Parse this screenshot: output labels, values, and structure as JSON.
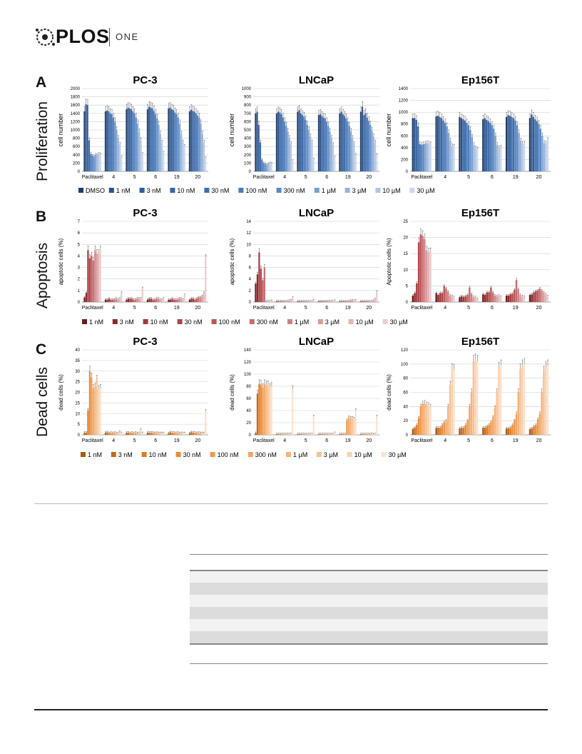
{
  "header": {
    "brand": "PLOS",
    "journal": "ONE"
  },
  "colors": {
    "proliferation": [
      "#1f3c67",
      "#2a528a",
      "#305d9b",
      "#3566a7",
      "#3c6fb2",
      "#4b7cbd",
      "#5b89c5",
      "#7b9fd0",
      "#97b3da",
      "#b2c6e3",
      "#cbd8ec"
    ],
    "apoptosis": [
      "#6e1a1e",
      "#8c2a2d",
      "#a2393b",
      "#b04648",
      "#bd5658",
      "#c66c6e",
      "#cf8285",
      "#d99a9c",
      "#e3b3b5",
      "#eccbcd"
    ],
    "dead": [
      "#a85a14",
      "#c36a1f",
      "#dc7b25",
      "#ea8b37",
      "#f0984a",
      "#f3a766",
      "#f5b37a",
      "#f7c294",
      "#f9d2b0",
      "#fbe2cd"
    ]
  },
  "rows": [
    {
      "letter": "A",
      "label": "Proliferation",
      "legend": [
        "DMSO",
        "1 nM",
        "3 nM",
        "10 nM",
        "30 nM",
        "100 nM",
        "300 nM",
        "1 µM",
        "3 µM",
        "10 µM",
        "30 µM"
      ],
      "palette": "proliferation",
      "charts": [
        {
          "title": "PC-3",
          "ylabel": "cell number",
          "ymax": 2000,
          "step": 200,
          "categories": [
            "Paclitaxel",
            "4",
            "5",
            "6",
            "19",
            "20"
          ],
          "values": [
            [
              1450,
              1620,
              1600,
              750,
              420,
              380,
              360,
              400,
              390,
              420,
              410
            ],
            [
              1450,
              1470,
              1450,
              1400,
              1380,
              1300,
              1200,
              1000,
              800,
              650,
              350
            ],
            [
              1500,
              1540,
              1520,
              1500,
              1450,
              1400,
              1300,
              1150,
              950,
              750,
              420
            ],
            [
              1500,
              1560,
              1540,
              1520,
              1460,
              1380,
              1280,
              1120,
              900,
              700,
              450
            ],
            [
              1520,
              1540,
              1500,
              1480,
              1420,
              1380,
              1300,
              1150,
              900,
              700,
              600
            ],
            [
              1450,
              1490,
              1460,
              1440,
              1400,
              1350,
              1300,
              1150,
              900,
              700,
              330
            ]
          ]
        },
        {
          "title": "LNCaP",
          "ylabel": "cell number",
          "ymax": 1000,
          "step": 100,
          "categories": [
            "Paclitaxel",
            "4",
            "5",
            "6",
            "19",
            "20"
          ],
          "values": [
            [
              700,
              720,
              560,
              350,
              140,
              100,
              90,
              80,
              90,
              100,
              95
            ],
            [
              700,
              720,
              710,
              690,
              650,
              600,
              550,
              480,
              400,
              330,
              130
            ],
            [
              720,
              740,
              700,
              680,
              660,
              620,
              560,
              500,
              420,
              350,
              150
            ],
            [
              680,
              690,
              670,
              650,
              640,
              600,
              550,
              480,
              400,
              320,
              170
            ],
            [
              700,
              720,
              690,
              670,
              640,
              600,
              550,
              480,
              400,
              330,
              200
            ],
            [
              720,
              780,
              680,
              700,
              650,
              610,
              560,
              490,
              420,
              350,
              200
            ]
          ]
        },
        {
          "title": "Ep156T",
          "ylabel": "cell number",
          "ymax": 1400,
          "step": 200,
          "categories": [
            "Paclitaxel",
            "4",
            "5",
            "6",
            "19",
            "20"
          ],
          "values": [
            [
              900,
              900,
              870,
              760,
              460,
              450,
              460,
              470,
              480,
              470,
              460
            ],
            [
              930,
              940,
              920,
              900,
              860,
              820,
              760,
              650,
              520,
              430,
              420
            ],
            [
              920,
              900,
              880,
              860,
              820,
              780,
              700,
              580,
              450,
              400,
              380
            ],
            [
              880,
              900,
              870,
              850,
              820,
              780,
              720,
              600,
              450,
              400,
              410
            ],
            [
              920,
              950,
              940,
              920,
              900,
              860,
              780,
              650,
              520,
              470,
              470
            ],
            [
              900,
              960,
              920,
              880,
              850,
              800,
              720,
              600,
              480,
              470,
              530
            ]
          ]
        }
      ]
    },
    {
      "letter": "B",
      "label": "Apoptosis",
      "legend": [
        "1 nM",
        "3 nM",
        "10 nM",
        "30 nM",
        "100 nM",
        "300 nM",
        "1 µM",
        "3 µM",
        "10 µM",
        "30 µM"
      ],
      "palette": "apoptosis",
      "charts": [
        {
          "title": "PC-3",
          "ylabel": "apoptotic cells (%)",
          "ymax": 7,
          "step": 1,
          "categories": [
            "Paclitaxel",
            "4",
            "5",
            "6",
            "19",
            "20"
          ],
          "values": [
            [
              0.4,
              0.8,
              4.5,
              3.8,
              4,
              3.6,
              4.5,
              4.2,
              4.2,
              4.5
            ],
            [
              0.2,
              0.2,
              0.3,
              0.2,
              0.2,
              0.2,
              0.3,
              0.2,
              0.3,
              0.8
            ],
            [
              0.2,
              0.3,
              0.3,
              0.3,
              0.2,
              0.2,
              0.3,
              0.3,
              0.3,
              1.2
            ],
            [
              0.2,
              0.3,
              0.3,
              0.2,
              0.2,
              0.3,
              0.3,
              0.2,
              0.2,
              0.3
            ],
            [
              0.2,
              0.2,
              0.3,
              0.2,
              0.2,
              0.2,
              0.3,
              0.3,
              0.2,
              0.6
            ],
            [
              0.2,
              0.3,
              0.3,
              0.2,
              0.3,
              0.4,
              0.4,
              0.5,
              0.8,
              3.8
            ]
          ]
        },
        {
          "title": "LNCaP",
          "ylabel": "apoptotic cells (%)",
          "ymax": 14,
          "step": 2,
          "categories": [
            "Paclitaxel",
            "4",
            "5",
            "6",
            "19",
            "20"
          ],
          "values": [
            [
              3.2,
              4.8,
              8.6,
              5.8,
              3.8,
              6,
              0.1,
              0.1,
              0.1,
              0.2
            ],
            [
              0.1,
              0.1,
              0.1,
              0.1,
              0.1,
              0.1,
              0.1,
              0.2,
              0.3,
              0.8
            ],
            [
              0.1,
              0.1,
              0.1,
              0.1,
              0.1,
              0.1,
              0.1,
              0.1,
              0.1,
              0.3
            ],
            [
              0.1,
              0.1,
              0.1,
              0.1,
              0.1,
              0.1,
              0.1,
              0.1,
              0.1,
              0.2
            ],
            [
              0.1,
              0.1,
              0.1,
              0.1,
              0.1,
              0.1,
              0.2,
              0.3,
              0.2,
              0.3
            ],
            [
              0.1,
              0.1,
              0.1,
              0.1,
              0.1,
              0.1,
              0.1,
              0.2,
              0.5,
              1.8
            ]
          ]
        },
        {
          "title": "Ep156T",
          "ylabel": "Apoptotic cells (%)",
          "ymax": 25,
          "step": 5,
          "categories": [
            "Paclitaxel",
            "4",
            "5",
            "6",
            "19",
            "20"
          ],
          "values": [
            [
              2,
              2.8,
              5.8,
              18.5,
              21,
              20.5,
              19.5,
              16,
              15.5,
              15.5
            ],
            [
              2.8,
              2.2,
              2.8,
              2.8,
              5,
              4.2,
              3.2,
              2,
              1.8,
              1.5
            ],
            [
              1.5,
              1.8,
              1.6,
              1.8,
              2.2,
              4.5,
              2.5,
              1.5,
              1.5,
              1
            ],
            [
              2.4,
              2.2,
              3,
              3,
              4.5,
              3,
              2,
              1.8,
              2,
              1.6
            ],
            [
              2,
              2,
              2.4,
              2.6,
              3.8,
              6.8,
              4,
              2.2,
              1.8,
              1.6
            ],
            [
              2.2,
              2.4,
              3,
              3.4,
              3.6,
              4.2,
              3.6,
              3,
              2.4,
              1.8
            ]
          ]
        }
      ]
    },
    {
      "letter": "C",
      "label": "Dead cells",
      "legend": [
        "1 nM",
        "3 nM",
        "10 nM",
        "30 nM",
        "100 nM",
        "300 nM",
        "1 µM",
        "3 µM",
        "10 µM",
        "30 µM"
      ],
      "palette": "dead",
      "charts": [
        {
          "title": "PC-3",
          "ylabel": "dead cells (%)",
          "ymax": 40,
          "step": 5,
          "categories": [
            "Paclitaxel",
            "4",
            "5",
            "6",
            "19",
            "20"
          ],
          "values": [
            [
              1,
              1,
              11.5,
              30,
              27,
              22,
              22.5,
              26,
              21.5,
              22
            ],
            [
              1,
              1.2,
              0.8,
              1,
              0.8,
              1,
              0.8,
              0.8,
              1.5,
              0.8
            ],
            [
              1,
              1,
              0.8,
              1,
              0.8,
              1,
              0.8,
              0.8,
              2.5,
              0.8
            ],
            [
              1,
              1,
              1,
              1,
              0.8,
              1,
              0.8,
              0.8,
              0.8,
              0.8
            ],
            [
              0.8,
              1.2,
              1,
              1,
              0.8,
              1,
              0.8,
              0.8,
              0.8,
              0.8
            ],
            [
              0.8,
              1.2,
              1,
              1,
              0.8,
              1,
              0.8,
              0.8,
              0.8,
              11
            ]
          ]
        },
        {
          "title": "LNCaP",
          "ylabel": "dead cells (%)",
          "ymax": 140,
          "step": 20,
          "categories": [
            "Paclitaxel",
            "4",
            "5",
            "6",
            "19",
            "20"
          ],
          "values": [
            [
              3,
              68,
              84,
              83,
              78,
              84,
              82,
              82,
              78,
              80
            ],
            [
              1,
              1,
              1,
              1,
              1,
              1,
              1,
              1,
              1,
              75
            ],
            [
              1,
              1,
              1,
              1,
              1,
              1,
              1,
              1,
              1,
              30
            ],
            [
              1,
              1,
              1,
              1,
              1,
              1,
              1,
              1,
              1,
              3
            ],
            [
              1,
              1,
              1,
              1,
              24,
              29,
              28,
              28,
              27,
              40
            ],
            [
              1,
              1,
              1,
              1,
              1,
              1,
              1,
              1,
              1,
              30
            ]
          ]
        },
        {
          "title": "Ep156T",
          "ylabel": "dead cells (%)",
          "ymax": 120,
          "step": 20,
          "categories": [
            "Paclitaxel",
            "4",
            "5",
            "6",
            "19",
            "20"
          ],
          "values": [
            [
              8,
              10,
              14,
              24,
              40,
              44,
              45,
              43,
              42,
              40
            ],
            [
              10,
              10,
              10,
              14,
              18,
              20,
              40,
              70,
              93,
              92
            ],
            [
              9,
              10,
              10,
              14,
              20,
              40,
              60,
              104,
              106,
              104
            ],
            [
              10,
              10,
              12,
              14,
              18,
              25,
              38,
              60,
              95,
              98
            ],
            [
              9,
              9,
              10,
              14,
              20,
              30,
              60,
              93,
              98,
              100
            ],
            [
              8,
              9,
              12,
              14,
              22,
              30,
              60,
              90,
              96,
              98
            ]
          ]
        }
      ]
    }
  ]
}
